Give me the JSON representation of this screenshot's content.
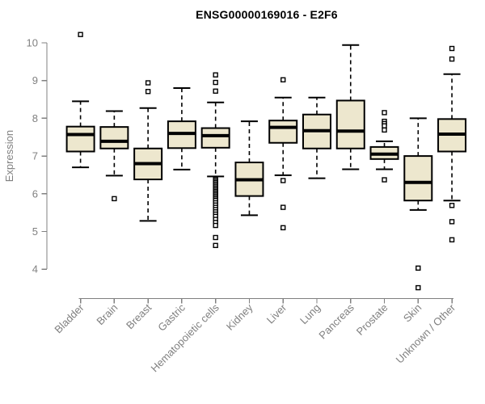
{
  "figure": {
    "title": "ENSG00000169016 - E2F6"
  },
  "colors": {
    "box_fill": "#EDE7CE",
    "box_stroke": "#000000",
    "median_color": "#000000",
    "whisker_color": "#000000",
    "outlier_stroke": "#000000",
    "outlier_fill": "#ffffff",
    "axis_color": "#808080",
    "tick_label_color": "#808080",
    "title_color": "#000000",
    "background": "#ffffff"
  },
  "chart_data": {
    "type": "boxplot",
    "title": "ENSG00000169016 - E2F6",
    "xlabel": "",
    "ylabel": "Expression",
    "ylim": [
      4,
      10
    ],
    "yticks": [
      4,
      5,
      6,
      7,
      8,
      9,
      10
    ],
    "grid": false,
    "legend": false,
    "categories": [
      "Bladder",
      "Brain",
      "Breast",
      "Gastric",
      "Hematopoietic cells",
      "Kidney",
      "Liver",
      "Lung",
      "Pancreas",
      "Prostate",
      "Skin",
      "Unknown / Other"
    ],
    "series": [
      {
        "label": "Bladder",
        "whisker_low": 6.7,
        "q1": 7.12,
        "median": 7.57,
        "q3": 7.78,
        "whisker_high": 8.45,
        "outliers": [
          10.22
        ]
      },
      {
        "label": "Brain",
        "whisker_low": 6.48,
        "q1": 7.2,
        "median": 7.39,
        "q3": 7.77,
        "whisker_high": 8.19,
        "outliers": [
          5.87
        ]
      },
      {
        "label": "Breast",
        "whisker_low": 5.28,
        "q1": 6.38,
        "median": 6.8,
        "q3": 7.2,
        "whisker_high": 8.27,
        "outliers": [
          8.94,
          8.71
        ]
      },
      {
        "label": "Gastric",
        "whisker_low": 6.64,
        "q1": 7.21,
        "median": 7.6,
        "q3": 7.92,
        "whisker_high": 8.8,
        "outliers": []
      },
      {
        "label": "Hematopoietic cells",
        "whisker_low": 6.46,
        "q1": 7.22,
        "median": 7.54,
        "q3": 7.74,
        "whisker_high": 8.42,
        "outliers": [
          9.15,
          8.95,
          8.72,
          6.38,
          6.34,
          6.3,
          6.26,
          6.22,
          6.18,
          6.14,
          6.1,
          6.06,
          6.02,
          5.98,
          5.94,
          5.9,
          5.86,
          5.82,
          5.76,
          5.7,
          5.64,
          5.58,
          5.52,
          5.46,
          5.4,
          5.32,
          5.24,
          5.16,
          4.84,
          4.63
        ]
      },
      {
        "label": "Kidney",
        "whisker_low": 5.43,
        "q1": 5.94,
        "median": 6.37,
        "q3": 6.83,
        "whisker_high": 7.92,
        "outliers": []
      },
      {
        "label": "Liver",
        "whisker_low": 6.49,
        "q1": 7.35,
        "median": 7.76,
        "q3": 7.94,
        "whisker_high": 8.55,
        "outliers": [
          9.02,
          6.35,
          5.64,
          5.1
        ]
      },
      {
        "label": "Lung",
        "whisker_low": 6.41,
        "q1": 7.2,
        "median": 7.67,
        "q3": 8.1,
        "whisker_high": 8.55,
        "outliers": []
      },
      {
        "label": "Pancreas",
        "whisker_low": 6.65,
        "q1": 7.2,
        "median": 7.66,
        "q3": 8.47,
        "whisker_high": 9.94,
        "outliers": []
      },
      {
        "label": "Prostate",
        "whisker_low": 6.65,
        "q1": 6.92,
        "median": 7.05,
        "q3": 7.24,
        "whisker_high": 7.39,
        "outliers": [
          8.15,
          7.92,
          7.86,
          7.8,
          7.69,
          6.37
        ]
      },
      {
        "label": "Skin",
        "whisker_low": 5.57,
        "q1": 5.82,
        "median": 6.3,
        "q3": 7.0,
        "whisker_high": 8.0,
        "outliers": [
          4.03,
          3.51
        ]
      },
      {
        "label": "Unknown / Other",
        "whisker_low": 5.82,
        "q1": 7.12,
        "median": 7.58,
        "q3": 7.98,
        "whisker_high": 9.17,
        "outliers": [
          9.85,
          9.57,
          5.69,
          5.26,
          4.78
        ]
      }
    ]
  }
}
